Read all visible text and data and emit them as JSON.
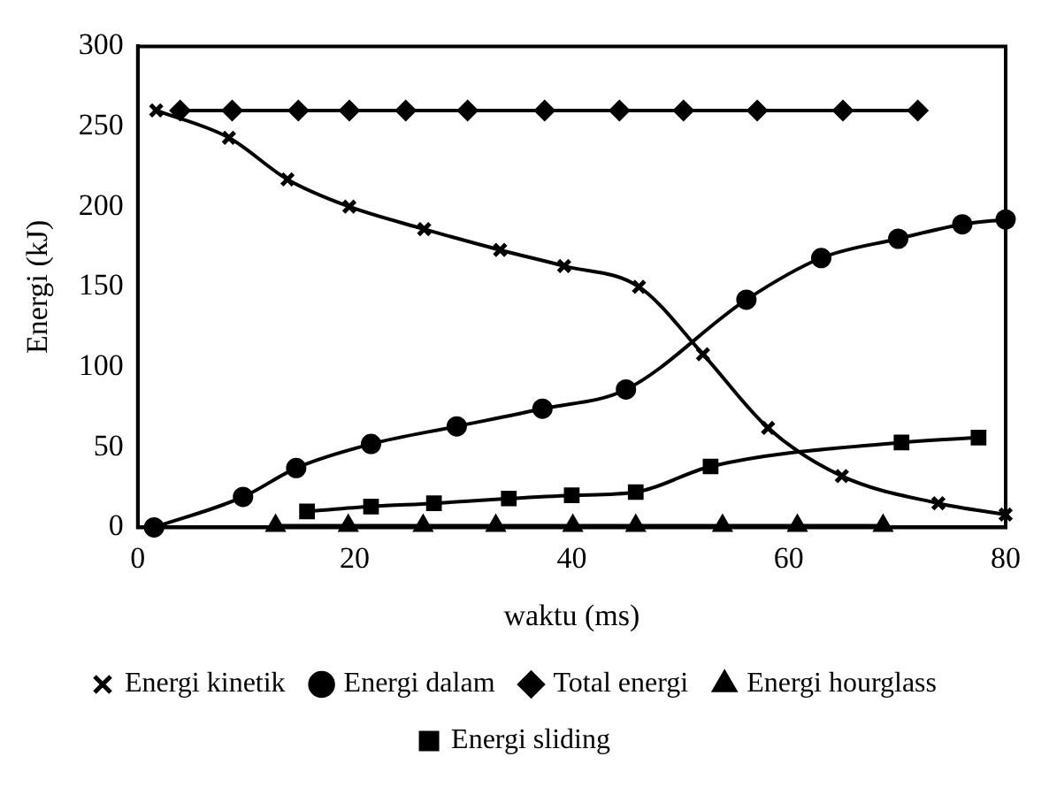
{
  "chart_data": {
    "type": "line",
    "xlabel": "waktu (ms)",
    "ylabel": "Energi (kJ)",
    "xlim": [
      0,
      80
    ],
    "xticks": [
      0,
      20,
      40,
      60,
      80
    ],
    "ylim": [
      0,
      300
    ],
    "yticks": [
      0,
      50,
      100,
      150,
      200,
      250,
      300
    ],
    "grid": false,
    "legend": "bottom",
    "line_style": "solid",
    "series": [
      {
        "name": "Energi kinetik",
        "color": "#000000",
        "marker": "cross",
        "x": [
          1.7,
          8.4,
          13.8,
          19.5,
          26.4,
          33.4,
          39.3,
          46.2,
          52.1,
          58.1,
          64.9,
          73.8,
          80
        ],
        "values": [
          260,
          243,
          217,
          200,
          186,
          173,
          163,
          150,
          108,
          62,
          32,
          15,
          8
        ]
      },
      {
        "name": "Energi dalam",
        "color": "#000000",
        "marker": "circle",
        "x": [
          1.5,
          9.7,
          14.6,
          21.5,
          29.4,
          37.3,
          45,
          56.1,
          63,
          70.1,
          76,
          80
        ],
        "values": [
          0,
          19,
          37,
          52,
          63,
          74,
          86,
          142,
          168,
          180,
          189,
          192
        ]
      },
      {
        "name": "Total energi",
        "color": "#000000",
        "marker": "diamond",
        "x": [
          3.9,
          8.7,
          14.8,
          19.5,
          24.7,
          30.4,
          37.5,
          44.4,
          50.3,
          57.1,
          65,
          71.9
        ],
        "values": [
          260,
          260,
          260,
          260,
          260,
          260,
          260,
          260,
          260,
          260,
          260,
          260
        ]
      },
      {
        "name": "Energi hourglass",
        "color": "#000000",
        "marker": "triangle",
        "x": [
          12.7,
          19.4,
          26.3,
          33,
          40.1,
          45.9,
          53.9,
          60.8,
          68.7
        ],
        "values": [
          1,
          1,
          1,
          1,
          1,
          1,
          1,
          1,
          1
        ]
      },
      {
        "name": "Energi sliding",
        "color": "#000000",
        "marker": "square",
        "x": [
          15.6,
          21.5,
          27.3,
          34.2,
          40,
          45.9,
          52.8,
          70.4,
          77.5
        ],
        "values": [
          10,
          13,
          15,
          18,
          20,
          22,
          38,
          53,
          56
        ]
      }
    ]
  }
}
